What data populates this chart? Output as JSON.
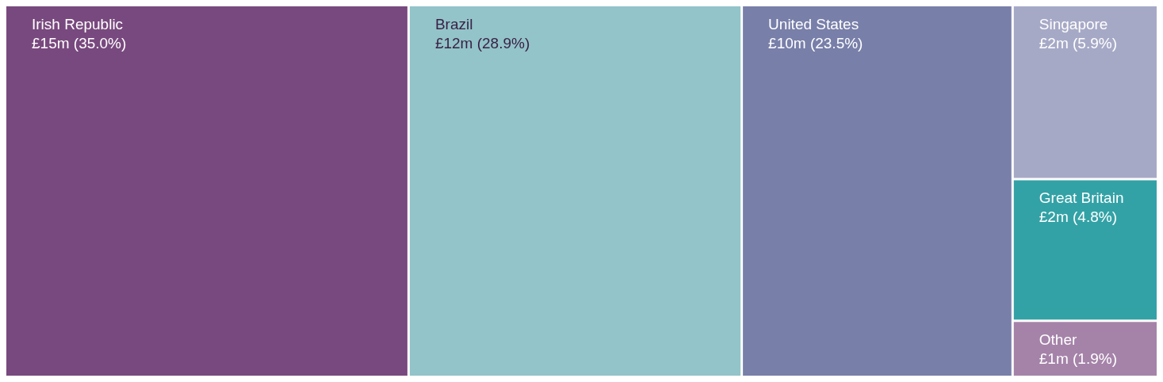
{
  "chart_data": {
    "type": "other",
    "categories": [
      "Irish Republic",
      "Brazil",
      "United States",
      "Singapore",
      "Great Britain",
      "Other"
    ],
    "values": [
      35.0,
      28.9,
      23.5,
      5.9,
      4.8,
      1.9
    ],
    "value_labels": [
      "£15m (35.0%)",
      "£12m (28.9%)",
      "£10m (23.5%)",
      "£2m (5.9%)",
      "£2m (4.8%)",
      "£1m (1.9%)"
    ],
    "colors": [
      "#78497e",
      "#92c4c9",
      "#787fa9",
      "#a6a9c6",
      "#33a2a6",
      "#a583a9"
    ]
  }
}
